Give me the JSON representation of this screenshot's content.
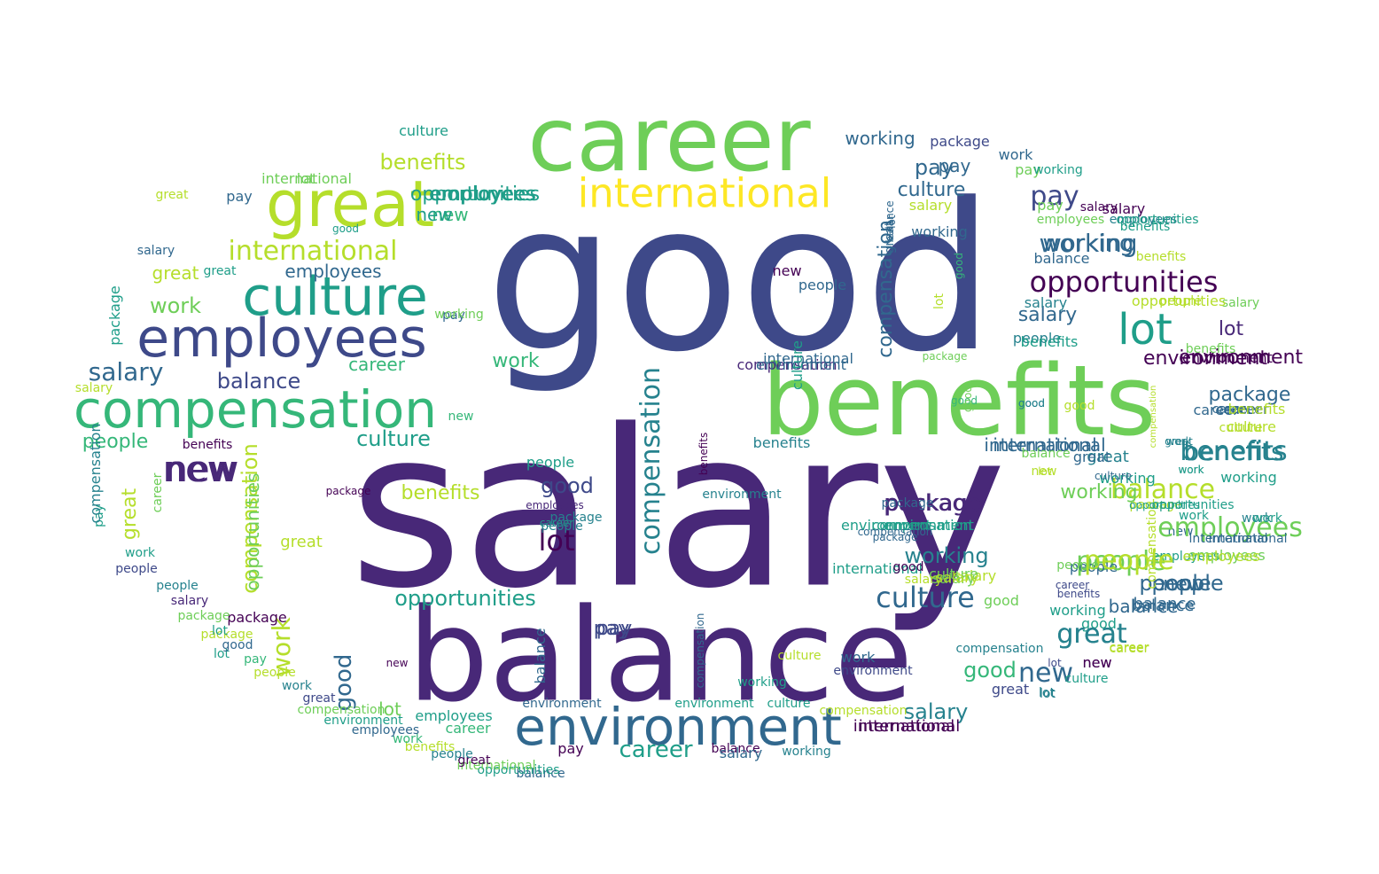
{
  "palette": {
    "d1": "#440154",
    "d2": "#482878",
    "d3": "#3e4989",
    "d4": "#31688e",
    "d5": "#26828e",
    "d6": "#1f9e89",
    "d7": "#35b779",
    "d8": "#6ece58",
    "d9": "#b5de2b",
    "d10": "#fde725"
  },
  "words": [
    "good",
    "salary",
    "career",
    "benefits",
    "balance",
    "great",
    "culture",
    "employees",
    "compensation",
    "international",
    "environment",
    "lot",
    "new",
    "pay",
    "working",
    "opportunities",
    "package",
    "people",
    "work",
    "career",
    "benefits",
    "culture",
    "new",
    "great",
    "environment",
    "pay",
    "working",
    "package",
    "pay",
    "work",
    "lot",
    "salary",
    "culture",
    "compensation",
    "balance",
    "opportunities",
    "international",
    "lot",
    "people",
    "working",
    "salary",
    "lot",
    "benefits",
    "environment",
    "salary",
    "balance",
    "career",
    "new",
    "package",
    "career",
    "good",
    "culture",
    "employees",
    "good",
    "people",
    "international",
    "work",
    "package",
    "great",
    "benefits",
    "balance",
    "people",
    "lot",
    "employees",
    "package",
    "balance",
    "great",
    "new",
    "pay",
    "good",
    "lot",
    "career",
    "salary",
    "culture",
    "compensation",
    "environment",
    "good",
    "culture",
    "international",
    "people",
    "new",
    "employees",
    "compensation",
    "pay",
    "career",
    "opportunities",
    "benefits",
    "working",
    "good",
    "salary",
    "great",
    "work",
    "package",
    "new",
    "employees",
    "people",
    "balance",
    "career",
    "compensation",
    "good",
    "pay",
    "great",
    "culture",
    "international",
    "environment",
    "employees",
    "working",
    "compensation",
    "opportunities",
    "package",
    "salary",
    "people",
    "salary",
    "working",
    "balance",
    "new",
    "benefits",
    "career",
    "great",
    "people",
    "good",
    "international",
    "work",
    "working",
    "great",
    "lot",
    "good",
    "work",
    "international",
    "compensation",
    "opportunities",
    "salary",
    "good",
    "working",
    "balance",
    "environment",
    "people",
    "employees",
    "work",
    "new",
    "benefits",
    "great",
    "package",
    "environment",
    "employees",
    "lot",
    "career",
    "culture",
    "salary",
    "international",
    "compensation",
    "benefits",
    "pay",
    "salary",
    "international",
    "career",
    "new",
    "work",
    "benefits",
    "work",
    "compensation",
    "good",
    "culture",
    "compensation",
    "great",
    "career",
    "lot",
    "people",
    "benefits",
    "pay",
    "culture",
    "opportunities",
    "package",
    "working",
    "work",
    "salary",
    "compensation",
    "environment",
    "benefits",
    "employees",
    "balance",
    "new",
    "working",
    "people",
    "opportunities",
    "employees",
    "great",
    "lot",
    "good",
    "package",
    "lot",
    "salary",
    "good",
    "work",
    "balance",
    "career",
    "environment",
    "benefits",
    "pay",
    "working",
    "international",
    "people",
    "salary",
    "package",
    "culture",
    "environment",
    "new",
    "benefits",
    "great",
    "employees",
    "salary",
    "career",
    "compensation",
    "balance",
    "environment",
    "working",
    "culture",
    "new",
    "good",
    "great",
    "work",
    "people",
    "package",
    "pay",
    "culture",
    "opportunities",
    "employees",
    "international",
    "lot",
    "working",
    "pay",
    "compensation",
    "new",
    "benefits",
    "salary",
    "package",
    "career",
    "balance",
    "opportunities",
    "international",
    "great",
    "people",
    "benefits",
    "work",
    "employees",
    "environment",
    "compensation",
    "great",
    "work",
    "people",
    "pay",
    "good",
    "lot",
    "package",
    "salary",
    "people",
    "good",
    "culture",
    "working",
    "pay",
    "career",
    "balance",
    "environment",
    "new",
    "salary",
    "great",
    "work",
    "people",
    "international",
    "career",
    "lot",
    "pay",
    "culture",
    "opportunities",
    "new",
    "good",
    "working",
    "benefits",
    "great",
    "employees"
  ]
}
